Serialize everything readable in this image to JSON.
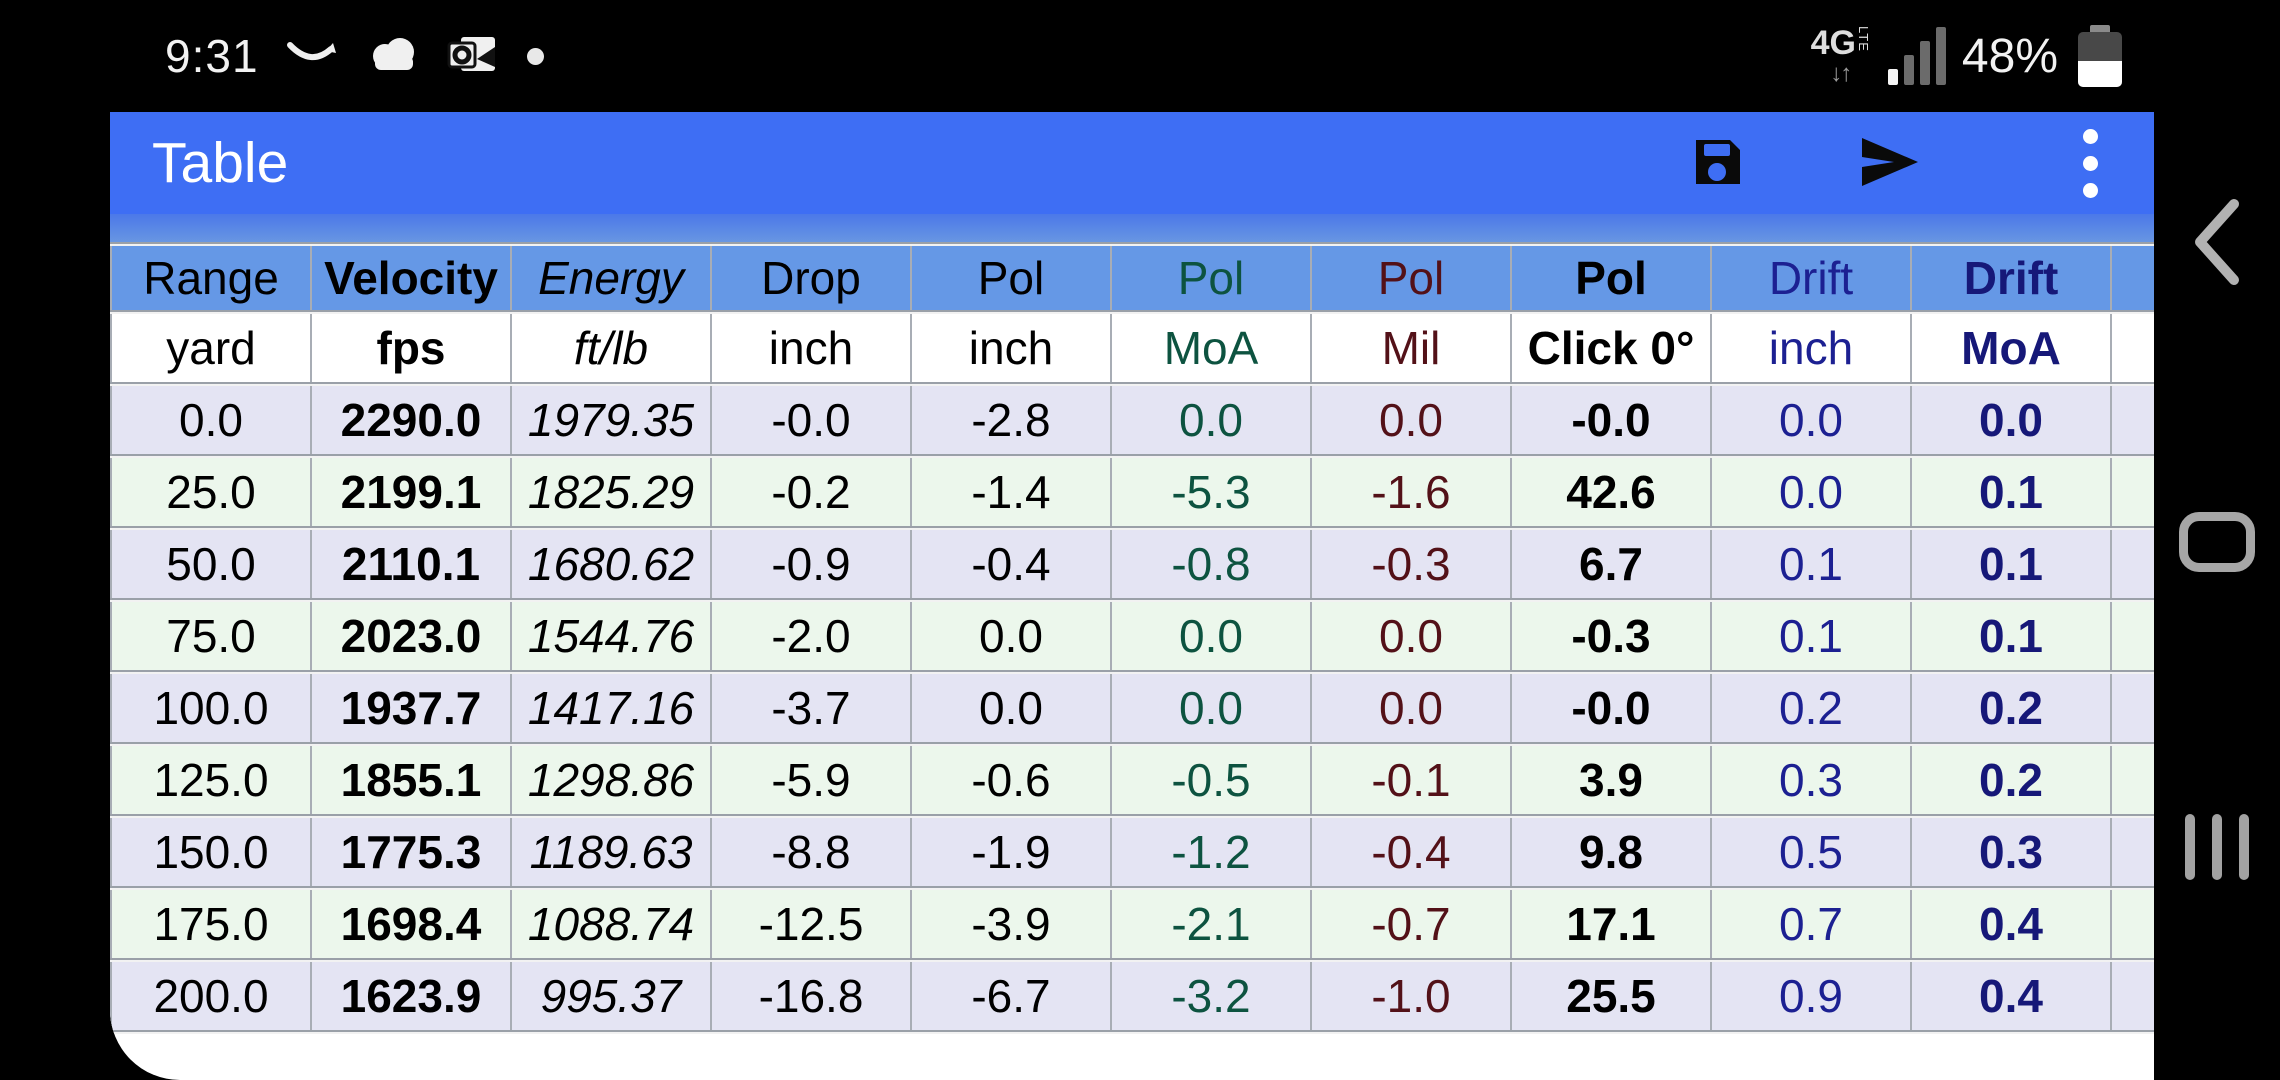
{
  "status_bar": {
    "time": "9:31",
    "battery_percent": "48%",
    "network": {
      "label": "4G",
      "sub": "LTE",
      "arrows": "↓↑"
    },
    "notification_icons": [
      "amazon-smile-icon",
      "cloud-icon",
      "outlook-icon",
      "notification-dot"
    ]
  },
  "action_bar": {
    "title": "Table",
    "buttons": {
      "save": "save",
      "send": "send",
      "menu": "more-options"
    },
    "accent_color": "#3e6ef4"
  },
  "table": {
    "columns": [
      {
        "id": "range",
        "header": "Range",
        "unit": "yard",
        "color": "#000000",
        "bold": false,
        "italic": false
      },
      {
        "id": "velocity",
        "header": "Velocity",
        "unit": "fps",
        "color": "#000000",
        "bold": true,
        "italic": false
      },
      {
        "id": "energy",
        "header": "Energy",
        "unit": "ft/lb",
        "color": "#000000",
        "bold": false,
        "italic": true
      },
      {
        "id": "drop",
        "header": "Drop",
        "unit": "inch",
        "color": "#000000",
        "bold": false,
        "italic": false
      },
      {
        "id": "pol-inch",
        "header": "Pol",
        "unit": "inch",
        "color": "#000000",
        "bold": false,
        "italic": false
      },
      {
        "id": "pol-moa",
        "header": "Pol",
        "unit": "MoA",
        "color": "#0d5340",
        "bold": false,
        "italic": false
      },
      {
        "id": "pol-mil",
        "header": "Pol",
        "unit": "Mil",
        "color": "#531118",
        "bold": false,
        "italic": false
      },
      {
        "id": "pol-click",
        "header": "Pol",
        "unit": "Click 0°",
        "color": "#000000",
        "bold": true,
        "italic": false
      },
      {
        "id": "drift-inch",
        "header": "Drift",
        "unit": "inch",
        "color": "#1c2092",
        "bold": false,
        "italic": false
      },
      {
        "id": "drift-moa",
        "header": "Drift",
        "unit": "MoA",
        "color": "#161878",
        "bold": true,
        "italic": false
      }
    ],
    "rows": [
      [
        "0.0",
        "2290.0",
        "1979.35",
        "-0.0",
        "-2.8",
        "0.0",
        "0.0",
        "-0.0",
        "0.0",
        "0.0"
      ],
      [
        "25.0",
        "2199.1",
        "1825.29",
        "-0.2",
        "-1.4",
        "-5.3",
        "-1.6",
        "42.6",
        "0.0",
        "0.1"
      ],
      [
        "50.0",
        "2110.1",
        "1680.62",
        "-0.9",
        "-0.4",
        "-0.8",
        "-0.3",
        "6.7",
        "0.1",
        "0.1"
      ],
      [
        "75.0",
        "2023.0",
        "1544.76",
        "-2.0",
        "0.0",
        "0.0",
        "0.0",
        "-0.3",
        "0.1",
        "0.1"
      ],
      [
        "100.0",
        "1937.7",
        "1417.16",
        "-3.7",
        "0.0",
        "0.0",
        "0.0",
        "-0.0",
        "0.2",
        "0.2"
      ],
      [
        "125.0",
        "1855.1",
        "1298.86",
        "-5.9",
        "-0.6",
        "-0.5",
        "-0.1",
        "3.9",
        "0.3",
        "0.2"
      ],
      [
        "150.0",
        "1775.3",
        "1189.63",
        "-8.8",
        "-1.9",
        "-1.2",
        "-0.4",
        "9.8",
        "0.5",
        "0.3"
      ],
      [
        "175.0",
        "1698.4",
        "1088.74",
        "-12.5",
        "-3.9",
        "-2.1",
        "-0.7",
        "17.1",
        "0.7",
        "0.4"
      ],
      [
        "200.0",
        "1623.9",
        "995.37",
        "-16.8",
        "-6.7",
        "-3.2",
        "-1.0",
        "25.5",
        "0.9",
        "0.4"
      ]
    ],
    "style": {
      "header_bg": "#6598e6",
      "row_even_bg": "#e4e4f3",
      "row_odd_bg": "#ecf7ec",
      "grid_color": "#a8adb5"
    }
  },
  "nav_bar": {
    "back": "back",
    "home": "home",
    "recents": "recents"
  }
}
